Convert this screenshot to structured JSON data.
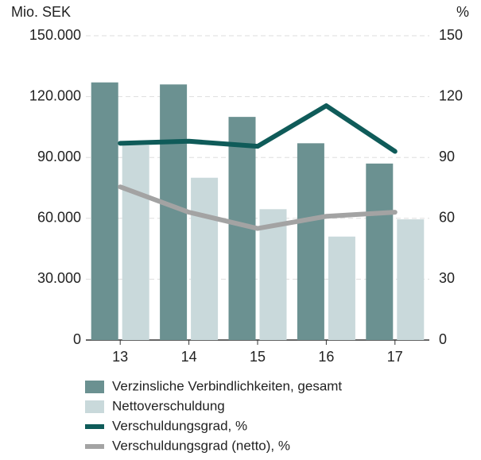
{
  "chart_data": {
    "type": "bar",
    "y_label": "Mio. SEK",
    "y2_label": "%",
    "categories": [
      "13",
      "14",
      "15",
      "16",
      "17"
    ],
    "series": [
      {
        "name": "Verzinsliche Verbindlichkeiten, gesamt",
        "type": "bar",
        "color": "#6b9191",
        "values": [
          127000,
          126000,
          110000,
          97000,
          87000
        ]
      },
      {
        "name": "Nettoverschuldung",
        "type": "bar",
        "color": "#c9d9db",
        "values": [
          96000,
          80000,
          64500,
          51000,
          59500
        ]
      },
      {
        "name": "Verschuldungsgrad, %",
        "type": "line",
        "axis": "y2",
        "color": "#0f5b59",
        "values": [
          97,
          98,
          95.5,
          115.5,
          93
        ]
      },
      {
        "name": "Verschuldungsgrad (netto), %",
        "type": "line",
        "axis": "y2",
        "color": "#a3a3a3",
        "values": [
          75.5,
          63,
          55,
          61,
          63
        ]
      }
    ],
    "ylim": [
      0,
      150000
    ],
    "yticks": [
      0,
      {
        "value": 30000,
        "label": "30.000"
      },
      {
        "value": 60000,
        "label": "60.000"
      },
      {
        "value": 90000,
        "label": "90.000"
      },
      {
        "value": 120000,
        "label": "120.000"
      },
      {
        "value": 150000,
        "label": "150.000"
      }
    ],
    "y2lim": [
      0,
      150
    ],
    "y2ticks": [
      0,
      30,
      60,
      90,
      120,
      150
    ],
    "grid": true
  }
}
